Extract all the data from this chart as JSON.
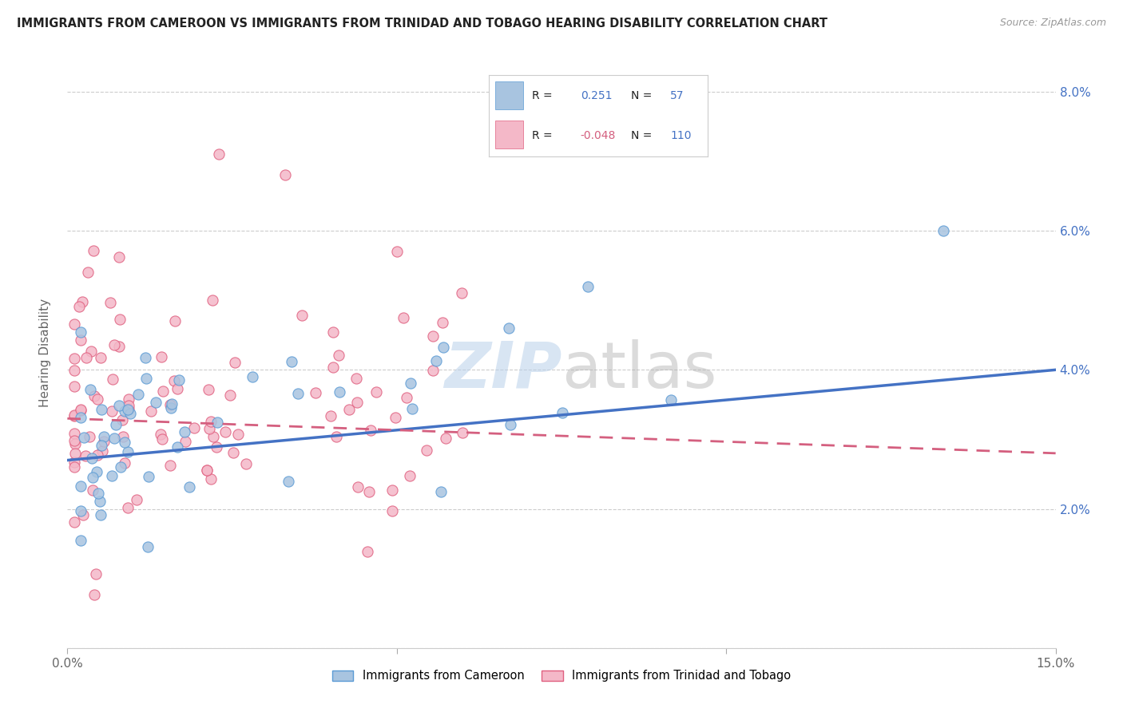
{
  "title": "IMMIGRANTS FROM CAMEROON VS IMMIGRANTS FROM TRINIDAD AND TOBAGO HEARING DISABILITY CORRELATION CHART",
  "source": "Source: ZipAtlas.com",
  "ylabel": "Hearing Disability",
  "xlim": [
    0.0,
    0.15
  ],
  "ylim": [
    0.0,
    0.085
  ],
  "cameroon_color": "#a8c4e0",
  "cameroon_color_dark": "#5b9bd5",
  "trinidad_color": "#f4b8c8",
  "trinidad_color_dark": "#e06080",
  "legend_color_blue": "#4472c4",
  "legend_color_pink": "#d45f7f",
  "R_cameroon": 0.251,
  "N_cameroon": 57,
  "R_trinidad": -0.048,
  "N_trinidad": 110,
  "cam_trend_x0": 0.0,
  "cam_trend_y0": 0.027,
  "cam_trend_x1": 0.15,
  "cam_trend_y1": 0.04,
  "tri_trend_x0": 0.0,
  "tri_trend_y0": 0.033,
  "tri_trend_x1": 0.15,
  "tri_trend_y1": 0.028
}
